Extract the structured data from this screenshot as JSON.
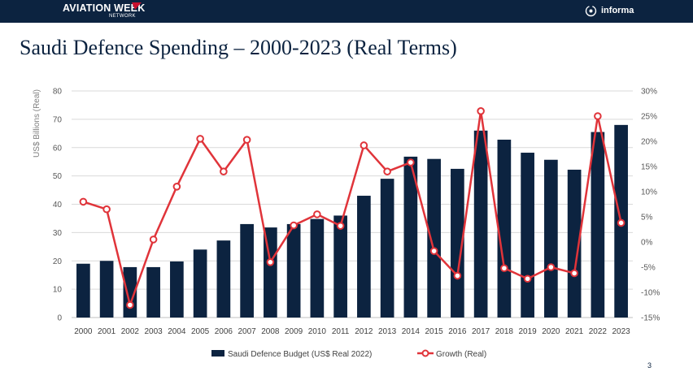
{
  "header": {
    "logo_text": "AVIATION WEEK",
    "logo_subtext": "NETWORK",
    "partner_logo_text": "informa",
    "background_color": "#0c2340"
  },
  "slide": {
    "title": "Saudi Defence Spending – 2000-2023 (Real Terms)",
    "page_number": "3"
  },
  "chart_data": {
    "type": "bar",
    "title": "Saudi Defence Spending – 2000-2023 (Real Terms)",
    "ylabel": "US$ Billions (Real)",
    "ylim": [
      0,
      80
    ],
    "y_ticks": [
      "0",
      "10",
      "20",
      "30",
      "40",
      "50",
      "60",
      "70",
      "80"
    ],
    "y2lim": [
      -15,
      30
    ],
    "y2_ticks": [
      "-15%",
      "-10%",
      "-5%",
      "0%",
      "5%",
      "10%",
      "15%",
      "20%",
      "25%",
      "30%"
    ],
    "grid": true,
    "legend_position": "bottom",
    "categories": [
      "2000",
      "2001",
      "2002",
      "2003",
      "2004",
      "2005",
      "2006",
      "2007",
      "2008",
      "2009",
      "2010",
      "2011",
      "2012",
      "2013",
      "2014",
      "2015",
      "2016",
      "2017",
      "2018",
      "2019",
      "2020",
      "2021",
      "2022",
      "2023"
    ],
    "series": [
      {
        "name": "Saudi Defence Budget (US$ Real 2022)",
        "type": "bar",
        "axis": "left",
        "color": "#0c2340",
        "values": [
          19,
          20,
          17.8,
          17.8,
          19.8,
          24,
          27.2,
          33,
          31.8,
          33,
          34.8,
          36,
          43,
          49,
          56.8,
          56,
          52.5,
          66,
          62.8,
          58.2,
          55.7,
          52.2,
          65.5,
          68
        ]
      },
      {
        "name": "Growth (Real)",
        "type": "line",
        "axis": "right",
        "color": "#e0343a",
        "values": [
          8,
          6.5,
          -12.5,
          0.5,
          11,
          20.5,
          14,
          20.3,
          -4,
          3.3,
          5.5,
          3.2,
          19.2,
          14,
          15.8,
          -1.8,
          -6.7,
          26,
          -5.2,
          -7.3,
          -5,
          -6.2,
          25,
          3.8
        ]
      }
    ]
  }
}
